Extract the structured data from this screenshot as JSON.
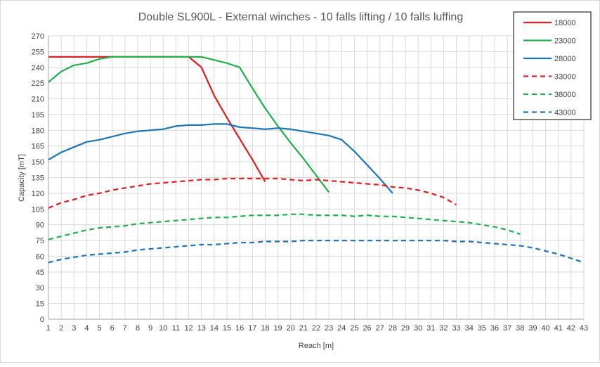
{
  "chart_data": {
    "type": "line",
    "title": "Double SL900L - External winches - 10 falls lifting / 10 falls luffing",
    "xlabel": "Reach [m]",
    "ylabel": "Capacity [mT]",
    "xlim": [
      1,
      43
    ],
    "ylim": [
      0,
      270
    ],
    "x_ticks": [
      1,
      2,
      3,
      4,
      5,
      6,
      7,
      8,
      9,
      10,
      11,
      12,
      13,
      14,
      15,
      16,
      17,
      18,
      19,
      20,
      21,
      22,
      23,
      24,
      25,
      26,
      27,
      28,
      29,
      30,
      31,
      32,
      33,
      34,
      35,
      36,
      37,
      38,
      39,
      40,
      41,
      42,
      43
    ],
    "y_ticks": [
      0,
      15,
      30,
      45,
      60,
      75,
      90,
      105,
      120,
      135,
      150,
      165,
      180,
      195,
      210,
      225,
      240,
      255,
      270
    ],
    "grid": true,
    "legend_position": "top-right",
    "series": [
      {
        "name": "18000",
        "color": "#e02020",
        "dash": false,
        "points": [
          [
            1,
            250
          ],
          [
            2,
            250
          ],
          [
            3,
            250
          ],
          [
            4,
            250
          ],
          [
            5,
            250
          ],
          [
            6,
            250
          ],
          [
            7,
            250
          ],
          [
            8,
            250
          ],
          [
            9,
            250
          ],
          [
            10,
            250
          ],
          [
            11,
            250
          ],
          [
            12,
            250
          ],
          [
            13,
            240
          ],
          [
            14,
            213
          ],
          [
            15,
            192
          ],
          [
            16,
            172
          ],
          [
            17,
            152
          ],
          [
            18,
            131
          ]
        ]
      },
      {
        "name": "23000",
        "color": "#22b14c",
        "dash": false,
        "points": [
          [
            1,
            226
          ],
          [
            2,
            236
          ],
          [
            3,
            242
          ],
          [
            4,
            244
          ],
          [
            5,
            248
          ],
          [
            6,
            250
          ],
          [
            7,
            250
          ],
          [
            8,
            250
          ],
          [
            9,
            250
          ],
          [
            10,
            250
          ],
          [
            11,
            250
          ],
          [
            12,
            250
          ],
          [
            13,
            250
          ],
          [
            14,
            247
          ],
          [
            15,
            244
          ],
          [
            16,
            240
          ],
          [
            17,
            220
          ],
          [
            18,
            201
          ],
          [
            19,
            184
          ],
          [
            20,
            168
          ],
          [
            21,
            153
          ],
          [
            22,
            137
          ],
          [
            23,
            121
          ]
        ]
      },
      {
        "name": "28000",
        "color": "#1f77b4",
        "dash": false,
        "points": [
          [
            1,
            152
          ],
          [
            2,
            159
          ],
          [
            3,
            164
          ],
          [
            4,
            169
          ],
          [
            5,
            171
          ],
          [
            6,
            174
          ],
          [
            7,
            177
          ],
          [
            8,
            179
          ],
          [
            9,
            180
          ],
          [
            10,
            181
          ],
          [
            11,
            184
          ],
          [
            12,
            185
          ],
          [
            13,
            185
          ],
          [
            14,
            186
          ],
          [
            15,
            186
          ],
          [
            16,
            183
          ],
          [
            17,
            182
          ],
          [
            18,
            181
          ],
          [
            19,
            182
          ],
          [
            20,
            181
          ],
          [
            21,
            179
          ],
          [
            22,
            177
          ],
          [
            23,
            175
          ],
          [
            24,
            171
          ],
          [
            25,
            160
          ],
          [
            26,
            147
          ],
          [
            27,
            134
          ],
          [
            28,
            120
          ]
        ]
      },
      {
        "name": "33000",
        "color": "#e02020",
        "dash": true,
        "points": [
          [
            1,
            106
          ],
          [
            2,
            111
          ],
          [
            3,
            114
          ],
          [
            4,
            118
          ],
          [
            5,
            120
          ],
          [
            6,
            123
          ],
          [
            7,
            125
          ],
          [
            8,
            127
          ],
          [
            9,
            129
          ],
          [
            10,
            130
          ],
          [
            11,
            131
          ],
          [
            12,
            132
          ],
          [
            13,
            133
          ],
          [
            14,
            133
          ],
          [
            15,
            134
          ],
          [
            16,
            134
          ],
          [
            17,
            134
          ],
          [
            18,
            134
          ],
          [
            19,
            134
          ],
          [
            20,
            133
          ],
          [
            21,
            132
          ],
          [
            22,
            133
          ],
          [
            23,
            132
          ],
          [
            24,
            131
          ],
          [
            25,
            130
          ],
          [
            26,
            129
          ],
          [
            27,
            128
          ],
          [
            28,
            126
          ],
          [
            29,
            125
          ],
          [
            30,
            123
          ],
          [
            31,
            120
          ],
          [
            32,
            116
          ],
          [
            33,
            109
          ]
        ]
      },
      {
        "name": "38000",
        "color": "#22b14c",
        "dash": true,
        "points": [
          [
            1,
            76
          ],
          [
            2,
            79
          ],
          [
            3,
            82
          ],
          [
            4,
            85
          ],
          [
            5,
            87
          ],
          [
            6,
            88
          ],
          [
            7,
            89
          ],
          [
            8,
            91
          ],
          [
            9,
            92
          ],
          [
            10,
            93
          ],
          [
            11,
            94
          ],
          [
            12,
            95
          ],
          [
            13,
            96
          ],
          [
            14,
            97
          ],
          [
            15,
            97
          ],
          [
            16,
            98
          ],
          [
            17,
            99
          ],
          [
            18,
            99
          ],
          [
            19,
            99
          ],
          [
            20,
            100
          ],
          [
            21,
            100
          ],
          [
            22,
            99
          ],
          [
            23,
            99
          ],
          [
            24,
            99
          ],
          [
            25,
            98
          ],
          [
            26,
            99
          ],
          [
            27,
            98
          ],
          [
            28,
            98
          ],
          [
            29,
            97
          ],
          [
            30,
            96
          ],
          [
            31,
            95
          ],
          [
            32,
            94
          ],
          [
            33,
            93
          ],
          [
            34,
            92
          ],
          [
            35,
            90
          ],
          [
            36,
            88
          ],
          [
            37,
            85
          ],
          [
            38,
            81
          ]
        ]
      },
      {
        "name": "43000",
        "color": "#1f77b4",
        "dash": true,
        "points": [
          [
            1,
            54
          ],
          [
            2,
            57
          ],
          [
            3,
            59
          ],
          [
            4,
            61
          ],
          [
            5,
            62
          ],
          [
            6,
            63
          ],
          [
            7,
            64
          ],
          [
            8,
            66
          ],
          [
            9,
            67
          ],
          [
            10,
            68
          ],
          [
            11,
            69
          ],
          [
            12,
            70
          ],
          [
            13,
            71
          ],
          [
            14,
            71
          ],
          [
            15,
            72
          ],
          [
            16,
            73
          ],
          [
            17,
            73
          ],
          [
            18,
            74
          ],
          [
            19,
            74
          ],
          [
            20,
            74
          ],
          [
            21,
            75
          ],
          [
            22,
            75
          ],
          [
            23,
            75
          ],
          [
            24,
            75
          ],
          [
            25,
            75
          ],
          [
            26,
            75
          ],
          [
            27,
            75
          ],
          [
            28,
            75
          ],
          [
            29,
            75
          ],
          [
            30,
            75
          ],
          [
            31,
            75
          ],
          [
            32,
            75
          ],
          [
            33,
            74
          ],
          [
            34,
            74
          ],
          [
            35,
            73
          ],
          [
            36,
            72
          ],
          [
            37,
            71
          ],
          [
            38,
            70
          ],
          [
            39,
            68
          ],
          [
            40,
            65
          ],
          [
            41,
            62
          ],
          [
            42,
            58
          ],
          [
            43,
            54
          ]
        ]
      }
    ]
  }
}
